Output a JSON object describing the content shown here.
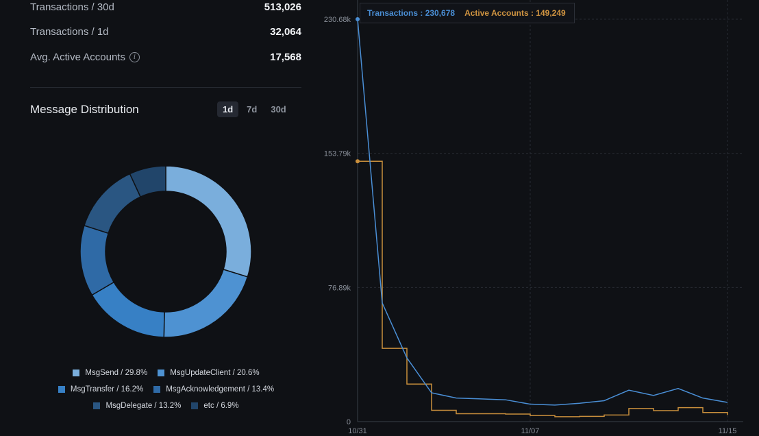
{
  "stats": [
    {
      "label": "Transactions / 30d",
      "value": "513,026"
    },
    {
      "label": "Transactions / 1d",
      "value": "32,064"
    },
    {
      "label": "Avg. Active Accounts",
      "value": "17,568"
    }
  ],
  "info_icon_glyph": "i",
  "message_distribution": {
    "title": "Message Distribution",
    "tabs": [
      "1d",
      "7d",
      "30d"
    ],
    "active_tab": "1d",
    "slices": [
      {
        "name": "MsgSend",
        "percent": 29.8,
        "label": "MsgSend / 29.8%",
        "color": "#7aaedc"
      },
      {
        "name": "MsgUpdateClient",
        "percent": 20.6,
        "label": "MsgUpdateClient / 20.6%",
        "color": "#4e92d2"
      },
      {
        "name": "MsgTransfer",
        "percent": 16.2,
        "label": "MsgTransfer / 16.2%",
        "color": "#3780c5"
      },
      {
        "name": "MsgAcknowledgement",
        "percent": 13.4,
        "label": "MsgAcknowledgement / 13.4%",
        "color": "#2f6aa6"
      },
      {
        "name": "MsgDelegate",
        "percent": 13.2,
        "label": "MsgDelegate / 13.2%",
        "color": "#2a5682"
      },
      {
        "name": "etc",
        "percent": 6.9,
        "label": "etc / 6.9%",
        "color": "#21456a"
      }
    ]
  },
  "tooltip": {
    "transactions": "Transactions : 230,678",
    "active_accounts": "Active Accounts : 149,249"
  },
  "colors": {
    "transactions": "#4a8fd6",
    "active_accounts": "#c98f3c",
    "grid": "#272b33",
    "axis_text": "#8a909a"
  },
  "chart_data": {
    "type": "line",
    "y_ticks": [
      "230.68k",
      "153.79k",
      "76.89k",
      "0"
    ],
    "y_tick_values": [
      230680,
      153790,
      76890,
      0
    ],
    "ylim": [
      0,
      230680
    ],
    "x_ticks": [
      "10/31",
      "11/07",
      "11/15"
    ],
    "x_tick_index": [
      0,
      7,
      15
    ],
    "series": [
      {
        "name": "Transactions",
        "type": "line",
        "values": [
          230678,
          68000,
          36500,
          16500,
          13500,
          13000,
          12500,
          10000,
          9500,
          10500,
          12000,
          18000,
          15000,
          19000,
          13500,
          11000
        ]
      },
      {
        "name": "Active Accounts",
        "type": "step",
        "values": [
          149249,
          42000,
          21500,
          6500,
          4500,
          4500,
          4300,
          3500,
          2800,
          3000,
          3800,
          7500,
          6300,
          8000,
          5200,
          3800
        ]
      }
    ]
  }
}
